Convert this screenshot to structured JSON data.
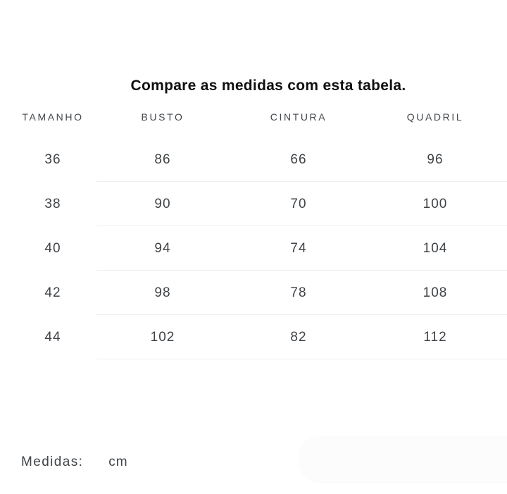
{
  "page": {
    "title": "Compare as medidas com esta tabela."
  },
  "table": {
    "columns": [
      "TAMANHO",
      "BUSTO",
      "CINTURA",
      "QUADRIL"
    ],
    "rows": [
      [
        "36",
        "86",
        "66",
        "96"
      ],
      [
        "38",
        "90",
        "70",
        "100"
      ],
      [
        "40",
        "94",
        "74",
        "104"
      ],
      [
        "42",
        "98",
        "78",
        "108"
      ],
      [
        "44",
        "102",
        "82",
        "112"
      ]
    ]
  },
  "footer": {
    "label": "Medidas:",
    "unit": "cm"
  },
  "colors": {
    "title_text": "#101010",
    "header_text": "#43474b",
    "cell_text": "#3f4347",
    "divider": "#efefef",
    "faint_panel": "#fcfcfc",
    "background": "#ffffff"
  }
}
